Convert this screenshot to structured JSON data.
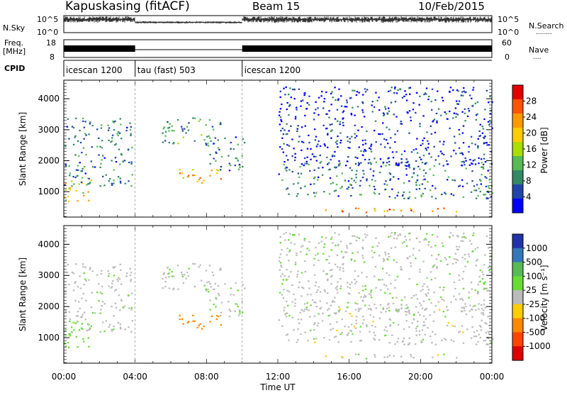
{
  "header": {
    "station": "Kapuskasing (fitACF)",
    "beam": "Beam 15",
    "date": "10/Feb/2015"
  },
  "noise_panel": {
    "left_label": "N.Sky",
    "right_label": "N.Search",
    "right_label_suffix": "........",
    "ticks_left": [
      "10^5",
      "10^0"
    ],
    "ticks_right": [
      "10^5",
      "10^0"
    ]
  },
  "freq_panel": {
    "left_label_line1": "Freq.",
    "left_label_line2": "[MHz]",
    "right_label": "Nave",
    "right_label_suffix": "....",
    "ticks_left": [
      "18",
      "8"
    ],
    "ticks_right": [
      "60",
      "0"
    ]
  },
  "cpid_panel": {
    "label": "CPID",
    "segments": [
      {
        "name": "icescan 1200",
        "start": 0,
        "end": 4
      },
      {
        "name": "tau (fast) 503",
        "start": 4,
        "end": 10
      },
      {
        "name": "icescan 1200",
        "start": 10,
        "end": 24
      }
    ]
  },
  "power_panel": {
    "ylabel": "Slant Range [km]",
    "colorbar_label": "Power [dB]",
    "colorbar_ticks": [
      "28",
      "24",
      "20",
      "16",
      "12",
      "8",
      "4"
    ],
    "colors": [
      "#e00000",
      "#ff5500",
      "#ff9900",
      "#ffcc00",
      "#aadd00",
      "#55bb55",
      "#338866",
      "#2244aa",
      "#0000ff"
    ]
  },
  "velocity_panel": {
    "ylabel": "Slant Range [km]",
    "colorbar_label": "Velocity [m s⁻¹]",
    "colorbar_ticks": [
      "1000",
      "500",
      "100",
      "25",
      "-25",
      "-100",
      "-500",
      "-1000"
    ],
    "colors": [
      "#2233aa",
      "#3377bb",
      "#55bb55",
      "#66dd33",
      "#bbbbbb",
      "#ffcc00",
      "#ff8800",
      "#ff4400",
      "#dd0000"
    ]
  },
  "x_axis": {
    "label": "Time UT",
    "tick_labels": [
      "00:00",
      "04:00",
      "08:00",
      "12:00",
      "16:00",
      "20:00",
      "00:00"
    ]
  },
  "chart_data": {
    "type": "heatmap",
    "title": "Kapuskasing (fitACF)",
    "subtitle": "Beam 15",
    "date": "10/Feb/2015",
    "xlabel": "Time UT",
    "ylabel": "Slant Range [km]",
    "xlim_hours": [
      0,
      24
    ],
    "ylim_km": [
      180,
      4600
    ],
    "y_ticks": [
      1000,
      2000,
      3000,
      4000
    ],
    "x_ticks": [
      "00:00",
      "04:00",
      "08:00",
      "12:00",
      "16:00",
      "20:00",
      "00:00"
    ],
    "grid": false,
    "power_colorbar_db": [
      4,
      8,
      12,
      16,
      20,
      24,
      28
    ],
    "velocity_colorbar_ms": [
      1000,
      500,
      100,
      25,
      -25,
      -100,
      -500,
      -1000
    ],
    "scatter_regions": [
      {
        "t0": 0.0,
        "t1": 1.6,
        "r0": 700,
        "r1": 1500,
        "power": 20,
        "velocity": 60
      },
      {
        "t0": 0.0,
        "t1": 3.8,
        "r0": 1200,
        "r1": 3400,
        "power": 10,
        "velocity": 5
      },
      {
        "t0": 6.4,
        "t1": 8.8,
        "r0": 1300,
        "r1": 1800,
        "power": 22,
        "velocity": -150
      },
      {
        "t0": 5.5,
        "t1": 8.8,
        "r0": 2500,
        "r1": 3400,
        "power": 12,
        "velocity": 5
      },
      {
        "t0": 8.0,
        "t1": 10.2,
        "r0": 1700,
        "r1": 2800,
        "power": 10,
        "velocity": 10
      },
      {
        "t0": 12.0,
        "t1": 24.0,
        "r0": 800,
        "r1": 2000,
        "power": 10,
        "velocity": 0
      },
      {
        "t0": 14.0,
        "t1": 22.0,
        "r0": 350,
        "r1": 500,
        "power": 26,
        "velocity": 0
      },
      {
        "t0": 12.0,
        "t1": 24.0,
        "r0": 1800,
        "r1": 4400,
        "power": 6,
        "velocity": 10
      }
    ],
    "cpid_segments": [
      {
        "name": "icescan 1200",
        "start_hour": 0,
        "end_hour": 4
      },
      {
        "name": "tau (fast) 503",
        "start_hour": 4,
        "end_hour": 10
      },
      {
        "name": "icescan 1200",
        "start_hour": 10,
        "end_hour": 24
      }
    ]
  }
}
